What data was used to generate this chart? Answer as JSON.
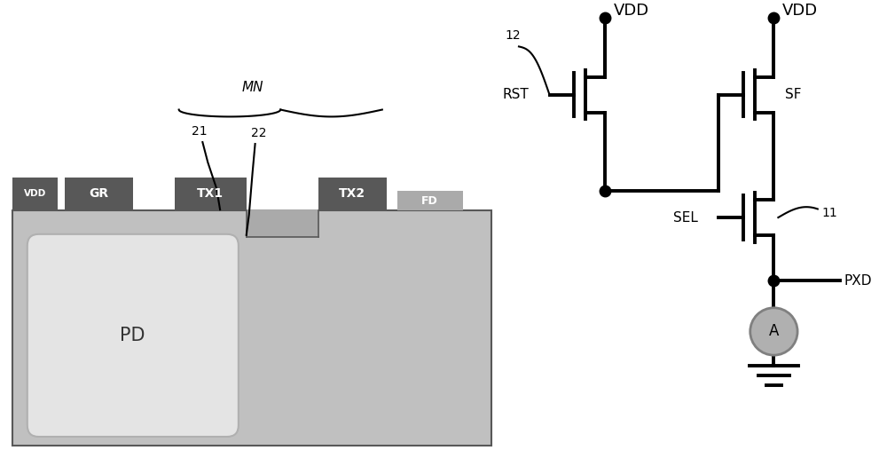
{
  "bg_color": "#ffffff",
  "substrate_color": "#c0c0c0",
  "substrate_top_color": "#c8c8c8",
  "gate_dark": "#585858",
  "fd_region_color": "#aaaaaa",
  "pd_fill": "#e4e4e4",
  "pd_border": "#b0b0b0",
  "circuit_lw": 2.8,
  "cross_lw": 1.5,
  "labels": {
    "VDD": "VDD",
    "RST": "RST",
    "SF": "SF",
    "SEL": "SEL",
    "PXD": "PXD",
    "GR": "GR",
    "TX1": "TX1",
    "TX2": "TX2",
    "FD": "FD",
    "PD": "PD",
    "MN": "MN",
    "21": "21",
    "22": "22",
    "12": "12",
    "11": "11",
    "A": "A"
  }
}
